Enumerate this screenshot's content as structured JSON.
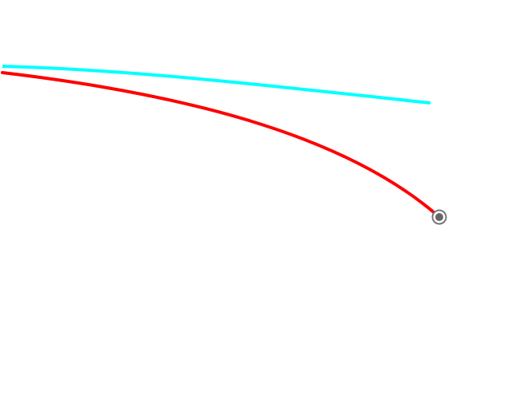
{
  "canvas": {
    "background": "#ffffff"
  },
  "curves": [
    {
      "id": "cyan-curve",
      "color": "#00ffff",
      "endpoint_marker": false
    },
    {
      "id": "red-curve",
      "color": "#ff0000",
      "endpoint_marker": true
    }
  ],
  "marker": {
    "icon": "endpoint-handle-icon",
    "ring_color": "#777777",
    "dot_color": "#666666"
  }
}
